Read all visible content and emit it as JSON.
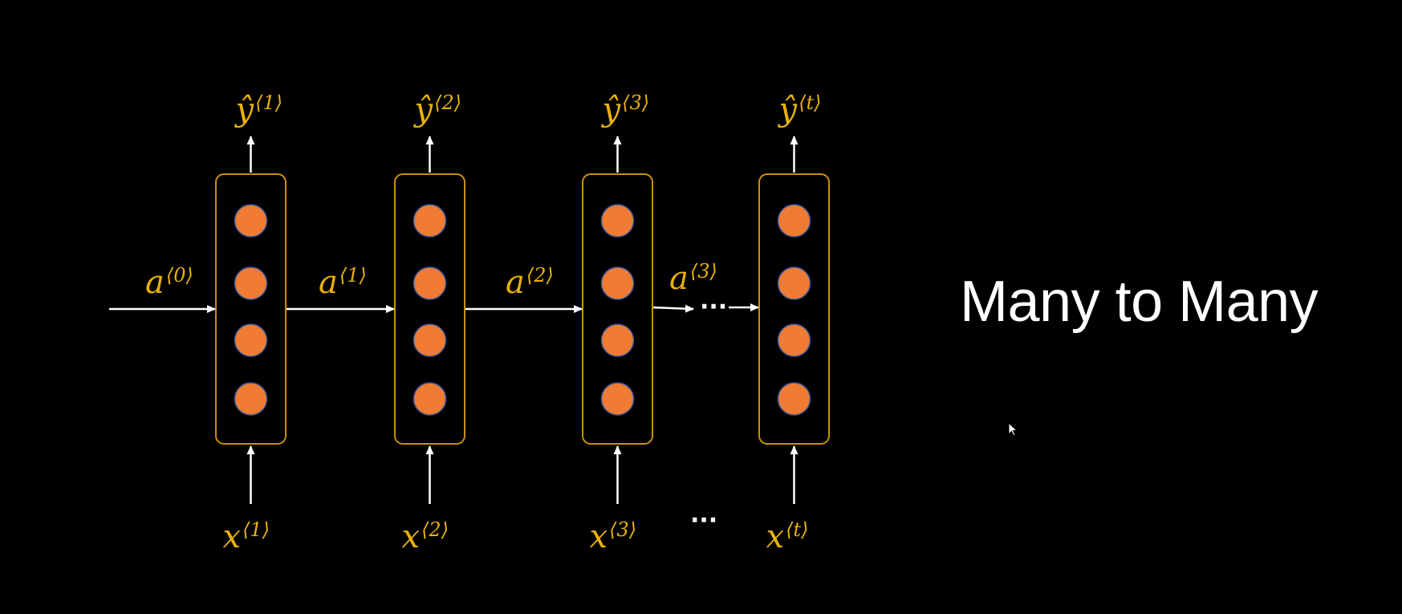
{
  "title": "Many to Many",
  "colors": {
    "background": "#000000",
    "neuron_fill": "#f07c33",
    "neuron_stroke": "#3a5a9c",
    "cell_border": "#c9900c",
    "label": "#e8b10b",
    "arrow": "#ffffff"
  },
  "cells": [
    {
      "output": {
        "base": "ŷ",
        "sup": "⟨1⟩"
      },
      "input": {
        "base": "x",
        "sup": "⟨1⟩"
      }
    },
    {
      "output": {
        "base": "ŷ",
        "sup": "⟨2⟩"
      },
      "input": {
        "base": "x",
        "sup": "⟨2⟩"
      }
    },
    {
      "output": {
        "base": "ŷ",
        "sup": "⟨3⟩"
      },
      "input": {
        "base": "x",
        "sup": "⟨3⟩"
      }
    },
    {
      "output": {
        "base": "ŷ",
        "sup": "⟨t⟩"
      },
      "input": {
        "base": "x",
        "sup": "⟨t⟩"
      }
    }
  ],
  "activations": [
    {
      "base": "a",
      "sup": "⟨0⟩"
    },
    {
      "base": "a",
      "sup": "⟨1⟩"
    },
    {
      "base": "a",
      "sup": "⟨2⟩"
    },
    {
      "base": "a",
      "sup": "⟨3⟩"
    }
  ],
  "ellipsis": "···",
  "icons": {
    "pointer": "mouse-cursor-icon"
  }
}
